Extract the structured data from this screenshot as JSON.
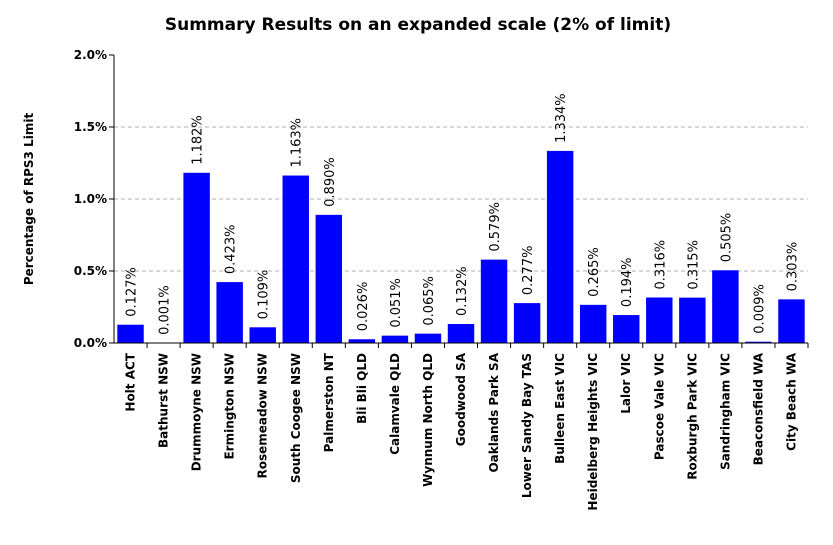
{
  "chart_data": {
    "type": "bar",
    "title": "Summary Results on an expanded scale (2% of limit)",
    "xlabel": "",
    "ylabel": "Percentage of RPS3 Limit",
    "ylim": [
      0,
      2.0
    ],
    "yticks": [
      "0.0%",
      "0.5%",
      "1.0%",
      "1.5%",
      "2.0%"
    ],
    "ytick_values": [
      0,
      0.5,
      1.0,
      1.5,
      2.0
    ],
    "grid": true,
    "bar_color": "#0000ff",
    "categories": [
      "Holt ACT",
      "Bathurst NSW",
      "Drummoyne NSW",
      "Ermington NSW",
      "Rosemeadow NSW",
      "South Coogee NSW",
      "Palmerston NT",
      "Bli Bli QLD",
      "Calamvale QLD",
      "Wynnum North QLD",
      "Goodwood SA",
      "Oaklands Park SA",
      "Lower Sandy Bay TAS",
      "Bulleen East VIC",
      "Heidelberg Heights VIC",
      "Lalor VIC",
      "Pascoe Vale VIC",
      "Roxburgh Park VIC",
      "Sandringham VIC",
      "Beaconsfield WA",
      "City Beach WA"
    ],
    "values": [
      0.127,
      0.001,
      1.182,
      0.423,
      0.109,
      1.163,
      0.89,
      0.026,
      0.051,
      0.065,
      0.132,
      0.579,
      0.277,
      1.334,
      0.265,
      0.194,
      0.316,
      0.315,
      0.505,
      0.009,
      0.303
    ],
    "data_labels": [
      "0.127%",
      "0.001%",
      "1.182%",
      "0.423%",
      "0.109%",
      "1.163%",
      "0.890%",
      "0.026%",
      "0.051%",
      "0.065%",
      "0.132%",
      "0.579%",
      "0.277%",
      "1.334%",
      "0.265%",
      "0.194%",
      "0.316%",
      "0.315%",
      "0.505%",
      "0.009%",
      "0.303%"
    ]
  }
}
